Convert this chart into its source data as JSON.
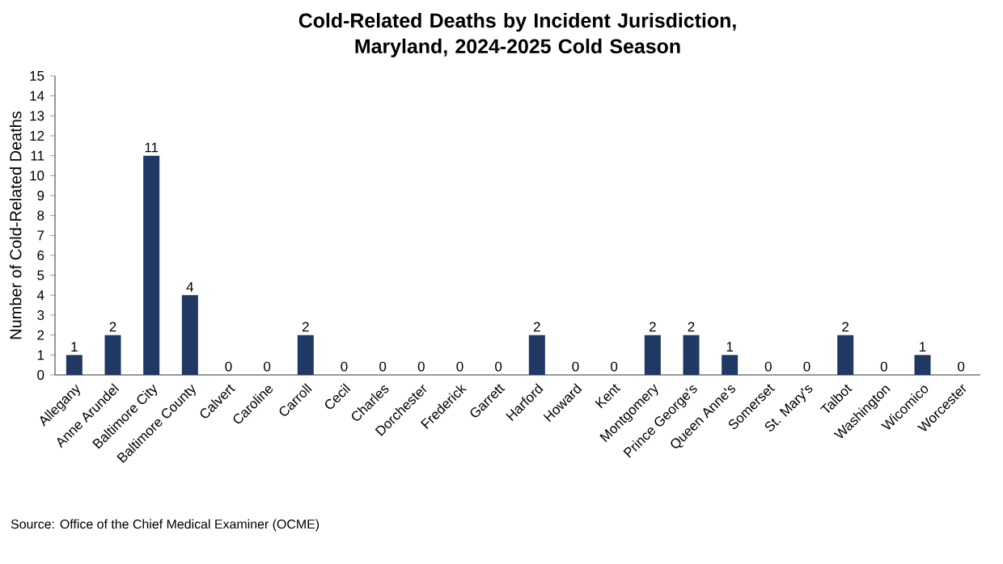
{
  "chart_data": {
    "type": "bar",
    "title": "Cold-Related Deaths by Incident Jurisdiction, Maryland, 2024-2025 Cold Season",
    "ylabel": "Number of Cold-Related Deaths",
    "categories": [
      "Allegany",
      "Anne Arundel",
      "Baltimore City",
      "Baltimore County",
      "Calvert",
      "Caroline",
      "Carroll",
      "Cecil",
      "Charles",
      "Dorchester",
      "Frederick",
      "Garrett",
      "Harford",
      "Howard",
      "Kent",
      "Montgomery",
      "Prince George's",
      "Queen Anne's",
      "Somerset",
      "St. Mary's",
      "Talbot",
      "Washington",
      "Wicomico",
      "Worcester"
    ],
    "values": [
      1,
      2,
      11,
      4,
      0,
      0,
      2,
      0,
      0,
      0,
      0,
      0,
      2,
      0,
      0,
      2,
      2,
      1,
      0,
      0,
      2,
      0,
      1,
      0
    ],
    "color": "#1f3864",
    "ylim": [
      0,
      15
    ],
    "yticks": [
      0,
      1,
      2,
      3,
      4,
      5,
      6,
      7,
      8,
      9,
      10,
      11,
      12,
      13,
      14,
      15
    ],
    "data_labels": true,
    "grid": false,
    "annotations": [
      "Source: Office of the Chief Medical Examiner (OCME)"
    ]
  }
}
